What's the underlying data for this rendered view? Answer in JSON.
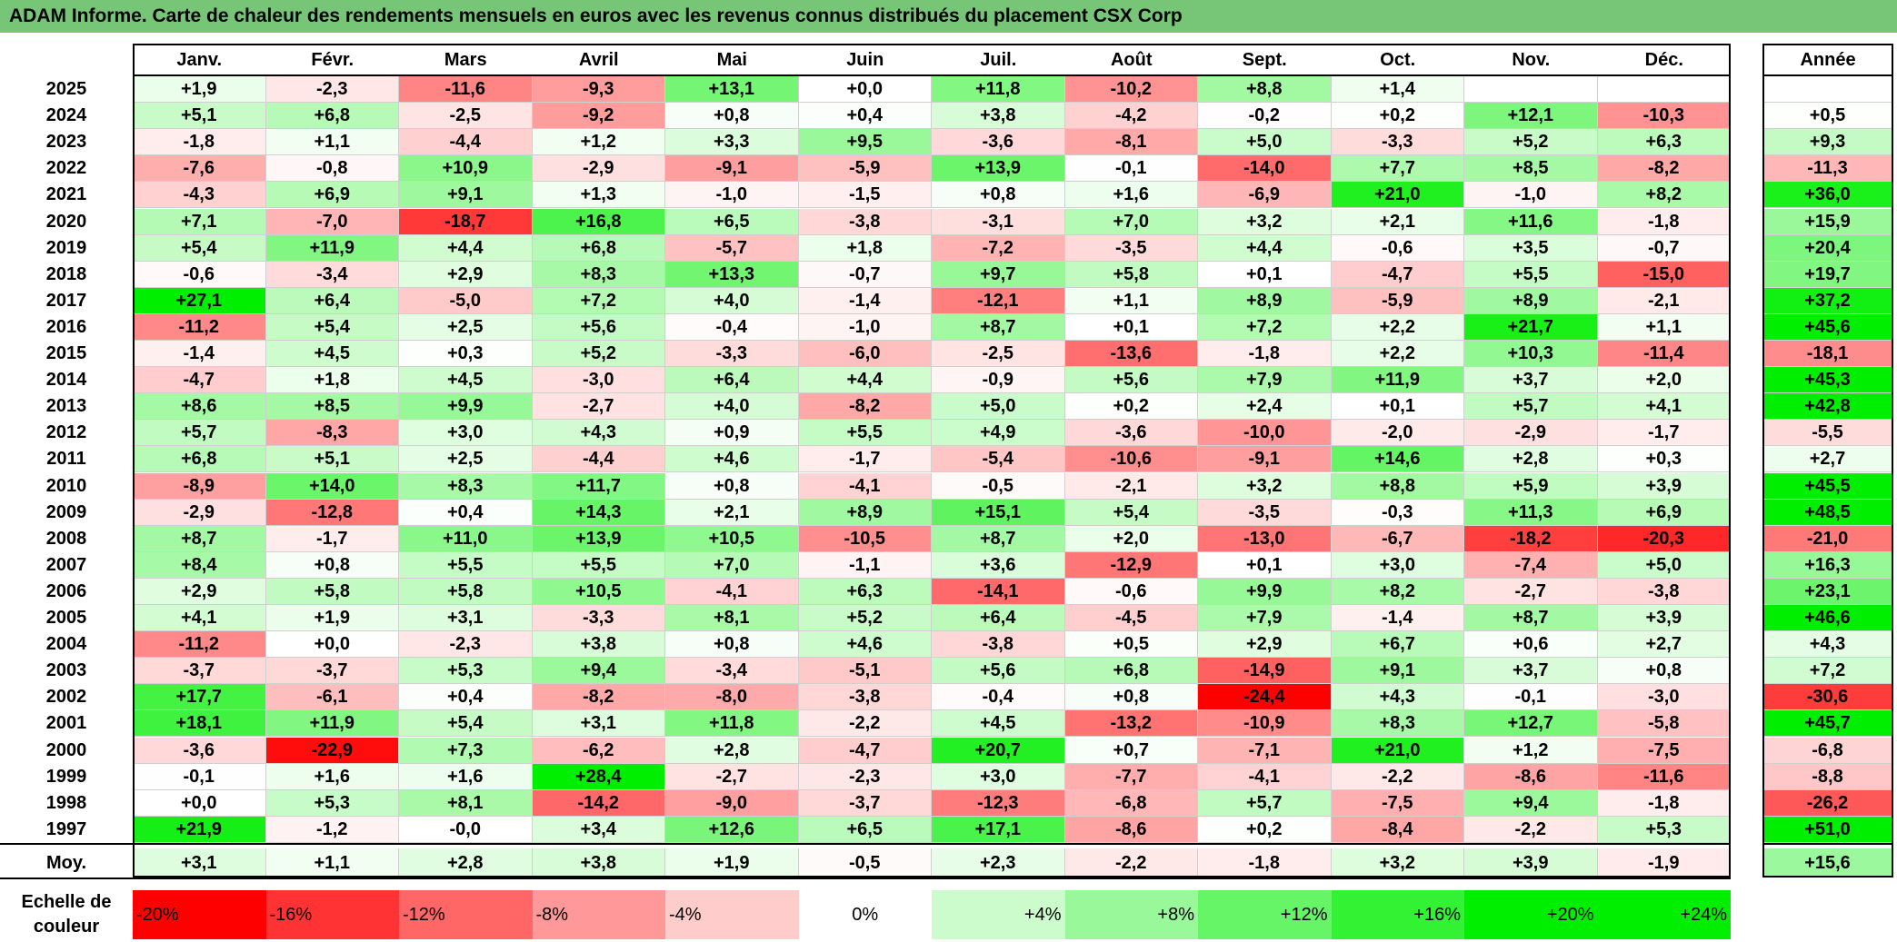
{
  "title": "ADAM Informe. Carte de chaleur des rendements mensuels en euros avec les revenus connus distribués du placement CSX Corp",
  "chart_data": {
    "type": "heatmap",
    "columns": [
      "Janv.",
      "Févr.",
      "Mars",
      "Avril",
      "Mai",
      "Juin",
      "Juil.",
      "Août",
      "Sept.",
      "Oct.",
      "Nov.",
      "Déc."
    ],
    "annual_header": "Année",
    "rows": [
      {
        "year": "2025",
        "values": [
          "+1,9",
          "-2,3",
          "-11,6",
          "-9,3",
          "+13,1",
          "+0,0",
          "+11,8",
          "-10,2",
          "+8,8",
          "+1,4",
          "",
          ""
        ],
        "annual": ""
      },
      {
        "year": "2024",
        "values": [
          "+5,1",
          "+6,8",
          "-2,5",
          "-9,2",
          "+0,8",
          "+0,4",
          "+3,8",
          "-4,2",
          "-0,2",
          "+0,2",
          "+12,1",
          "-10,3"
        ],
        "annual": "+0,5"
      },
      {
        "year": "2023",
        "values": [
          "-1,8",
          "+1,1",
          "-4,4",
          "+1,2",
          "+3,3",
          "+9,5",
          "-3,6",
          "-8,1",
          "+5,0",
          "-3,3",
          "+5,2",
          "+6,3"
        ],
        "annual": "+9,3"
      },
      {
        "year": "2022",
        "values": [
          "-7,6",
          "-0,8",
          "+10,9",
          "-2,9",
          "-9,1",
          "-5,9",
          "+13,9",
          "-0,1",
          "-14,0",
          "+7,7",
          "+8,5",
          "-8,2"
        ],
        "annual": "-11,3"
      },
      {
        "year": "2021",
        "values": [
          "-4,3",
          "+6,9",
          "+9,1",
          "+1,3",
          "-1,0",
          "-1,5",
          "+0,8",
          "+1,6",
          "-6,9",
          "+21,0",
          "-1,0",
          "+8,2"
        ],
        "annual": "+36,0"
      },
      {
        "year": "2020",
        "values": [
          "+7,1",
          "-7,0",
          "-18,7",
          "+16,8",
          "+6,5",
          "-3,8",
          "-3,1",
          "+7,0",
          "+3,2",
          "+2,1",
          "+11,6",
          "-1,8"
        ],
        "annual": "+15,9"
      },
      {
        "year": "2019",
        "values": [
          "+5,4",
          "+11,9",
          "+4,4",
          "+6,8",
          "-5,7",
          "+1,8",
          "-7,2",
          "-3,5",
          "+4,4",
          "-0,6",
          "+3,5",
          "-0,7"
        ],
        "annual": "+20,4"
      },
      {
        "year": "2018",
        "values": [
          "-0,6",
          "-3,4",
          "+2,9",
          "+8,3",
          "+13,3",
          "-0,7",
          "+9,7",
          "+5,8",
          "+0,1",
          "-4,7",
          "+5,5",
          "-15,0"
        ],
        "annual": "+19,7"
      },
      {
        "year": "2017",
        "values": [
          "+27,1",
          "+6,4",
          "-5,0",
          "+7,2",
          "+4,0",
          "-1,4",
          "-12,1",
          "+1,1",
          "+8,9",
          "-5,9",
          "+8,9",
          "-2,1"
        ],
        "annual": "+37,2"
      },
      {
        "year": "2016",
        "values": [
          "-11,2",
          "+5,4",
          "+2,5",
          "+5,6",
          "-0,4",
          "-1,0",
          "+8,7",
          "+0,1",
          "+7,2",
          "+2,2",
          "+21,7",
          "+1,1"
        ],
        "annual": "+45,6"
      },
      {
        "year": "2015",
        "values": [
          "-1,4",
          "+4,5",
          "+0,3",
          "+5,2",
          "-3,3",
          "-6,0",
          "-2,5",
          "-13,6",
          "-1,8",
          "+2,2",
          "+10,3",
          "-11,4"
        ],
        "annual": "-18,1"
      },
      {
        "year": "2014",
        "values": [
          "-4,7",
          "+1,8",
          "+4,5",
          "-3,0",
          "+6,4",
          "+4,4",
          "-0,9",
          "+5,6",
          "+7,9",
          "+11,9",
          "+3,7",
          "+2,0"
        ],
        "annual": "+45,3"
      },
      {
        "year": "2013",
        "values": [
          "+8,6",
          "+8,5",
          "+9,9",
          "-2,7",
          "+4,0",
          "-8,2",
          "+5,0",
          "+0,2",
          "+2,4",
          "+0,1",
          "+5,7",
          "+4,1"
        ],
        "annual": "+42,8"
      },
      {
        "year": "2012",
        "values": [
          "+5,7",
          "-8,3",
          "+3,0",
          "+4,3",
          "+0,9",
          "+5,5",
          "+4,9",
          "-3,6",
          "-10,0",
          "-2,0",
          "-2,9",
          "-1,7"
        ],
        "annual": "-5,5"
      },
      {
        "year": "2011",
        "values": [
          "+6,8",
          "+5,1",
          "+2,5",
          "-4,4",
          "+4,6",
          "-1,7",
          "-5,4",
          "-10,6",
          "-9,1",
          "+14,6",
          "+2,8",
          "+0,3"
        ],
        "annual": "+2,7"
      },
      {
        "year": "2010",
        "values": [
          "-8,9",
          "+14,0",
          "+8,3",
          "+11,7",
          "+0,8",
          "-4,1",
          "-0,5",
          "-2,1",
          "+3,2",
          "+8,8",
          "+5,9",
          "+3,9"
        ],
        "annual": "+45,5"
      },
      {
        "year": "2009",
        "values": [
          "-2,9",
          "-12,8",
          "+0,4",
          "+14,3",
          "+2,1",
          "+8,9",
          "+15,1",
          "+5,4",
          "-3,5",
          "-0,3",
          "+11,3",
          "+6,9"
        ],
        "annual": "+48,5"
      },
      {
        "year": "2008",
        "values": [
          "+8,7",
          "-1,7",
          "+11,0",
          "+13,9",
          "+10,5",
          "-10,5",
          "+8,7",
          "+2,0",
          "-13,0",
          "-6,7",
          "-18,2",
          "-20,3"
        ],
        "annual": "-21,0"
      },
      {
        "year": "2007",
        "values": [
          "+8,4",
          "+0,8",
          "+5,5",
          "+5,5",
          "+7,0",
          "-1,1",
          "+3,6",
          "-12,9",
          "+0,1",
          "+3,0",
          "-7,4",
          "+5,0"
        ],
        "annual": "+16,3"
      },
      {
        "year": "2006",
        "values": [
          "+2,9",
          "+5,8",
          "+5,8",
          "+10,5",
          "-4,1",
          "+6,3",
          "-14,1",
          "-0,6",
          "+9,9",
          "+8,2",
          "-2,7",
          "-3,8"
        ],
        "annual": "+23,1"
      },
      {
        "year": "2005",
        "values": [
          "+4,1",
          "+1,9",
          "+3,1",
          "-3,3",
          "+8,1",
          "+5,2",
          "+6,4",
          "-4,5",
          "+7,9",
          "-1,4",
          "+8,7",
          "+3,9"
        ],
        "annual": "+46,6"
      },
      {
        "year": "2004",
        "values": [
          "-11,2",
          "+0,0",
          "-2,3",
          "+3,8",
          "+0,8",
          "+4,6",
          "-3,8",
          "+0,5",
          "+2,9",
          "+6,7",
          "+0,6",
          "+2,7"
        ],
        "annual": "+4,3"
      },
      {
        "year": "2003",
        "values": [
          "-3,7",
          "-3,7",
          "+5,3",
          "+9,4",
          "-3,4",
          "-5,1",
          "+5,6",
          "+6,8",
          "-14,9",
          "+9,1",
          "+3,7",
          "+0,8"
        ],
        "annual": "+7,2"
      },
      {
        "year": "2002",
        "values": [
          "+17,7",
          "-6,1",
          "+0,4",
          "-8,2",
          "-8,0",
          "-3,8",
          "-0,4",
          "+0,8",
          "-24,4",
          "+4,3",
          "-0,1",
          "-3,0"
        ],
        "annual": "-30,6"
      },
      {
        "year": "2001",
        "values": [
          "+18,1",
          "+11,9",
          "+5,4",
          "+3,1",
          "+11,8",
          "-2,2",
          "+4,5",
          "-13,2",
          "-10,9",
          "+8,3",
          "+12,7",
          "-5,8"
        ],
        "annual": "+45,7"
      },
      {
        "year": "2000",
        "values": [
          "-3,6",
          "-22,9",
          "+7,3",
          "-6,2",
          "+2,8",
          "-4,7",
          "+20,7",
          "+0,7",
          "-7,1",
          "+21,0",
          "+1,2",
          "-7,5"
        ],
        "annual": "-6,8"
      },
      {
        "year": "1999",
        "values": [
          "-0,1",
          "+1,6",
          "+1,6",
          "+28,4",
          "-2,7",
          "-2,3",
          "+3,0",
          "-7,7",
          "-4,1",
          "-2,2",
          "-8,6",
          "-11,6"
        ],
        "annual": "-8,8"
      },
      {
        "year": "1998",
        "values": [
          "+0,0",
          "+5,3",
          "+8,1",
          "-14,2",
          "-9,0",
          "-3,7",
          "-12,3",
          "-6,8",
          "+5,7",
          "-7,5",
          "+9,4",
          "-1,8"
        ],
        "annual": "-26,2"
      },
      {
        "year": "1997",
        "values": [
          "+21,9",
          "-1,2",
          "-0,0",
          "+3,4",
          "+12,6",
          "+6,5",
          "+17,1",
          "-8,6",
          "+0,2",
          "-8,4",
          "-2,2",
          "+5,3"
        ],
        "annual": "+51,0"
      }
    ],
    "average": {
      "label": "Moy.",
      "values": [
        "+3,1",
        "+1,1",
        "+2,8",
        "+3,8",
        "+1,9",
        "-0,5",
        "+2,3",
        "-2,2",
        "-1,8",
        "+3,2",
        "+3,9",
        "-1,9"
      ],
      "annual": "+15,6"
    },
    "color_scale": {
      "label_line1": "Echelle de",
      "label_line2": "couleur",
      "steps": [
        "-20%",
        "-16%",
        "-12%",
        "-8%",
        "-4%",
        "0%",
        "+4%",
        "+8%",
        "+12%",
        "+16%",
        "+20%",
        "+24%"
      ],
      "step_values": [
        -20,
        -16,
        -12,
        -8,
        -4,
        0,
        4,
        8,
        12,
        16,
        20,
        24
      ],
      "neg_color": "#ff0000",
      "zero_color": "#ffffff",
      "pos_color": "#00ee00"
    }
  }
}
